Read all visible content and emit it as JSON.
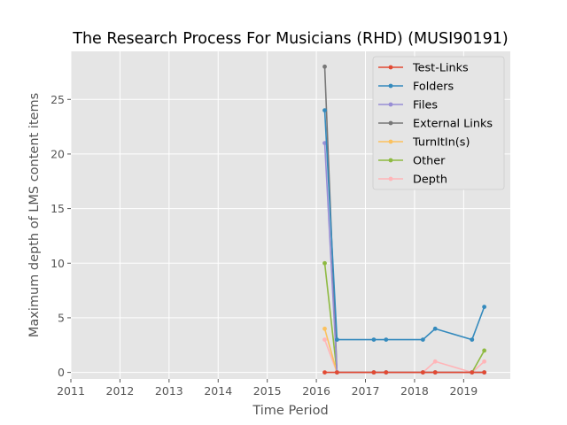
{
  "chart_data": {
    "type": "line",
    "title": "The Research Process For Musicians (RHD) (MUSI90191)",
    "xlabel": "Time Period",
    "ylabel": "Maximum depth of LMS content items",
    "xlim": [
      2011.0,
      2019.95
    ],
    "ylim": [
      -0.6,
      29.4
    ],
    "xticks": [
      2011,
      2012,
      2013,
      2014,
      2015,
      2016,
      2017,
      2018,
      2019
    ],
    "yticks": [
      0,
      5,
      10,
      15,
      20,
      25
    ],
    "grid": true,
    "legend_position": "upper right",
    "x_dates": [
      "2016-03",
      "2016-06",
      "2017-03",
      "2017-06",
      "2018-03",
      "2018-06",
      "2019-03",
      "2019-06"
    ],
    "x": [
      2016.17,
      2016.42,
      2017.17,
      2017.42,
      2018.17,
      2018.42,
      2019.17,
      2019.42
    ],
    "series": [
      {
        "name": "Test-Links",
        "color": "#E24A33",
        "values": [
          0,
          0,
          0,
          0,
          0,
          0,
          0,
          0
        ]
      },
      {
        "name": "Folders",
        "color": "#348ABD",
        "values": [
          24,
          3,
          3,
          3,
          3,
          4,
          3,
          6
        ]
      },
      {
        "name": "Files",
        "color": "#988ED5",
        "values": [
          21,
          0,
          0,
          0,
          0,
          0,
          0,
          0
        ]
      },
      {
        "name": "External Links",
        "color": "#777777",
        "values": [
          28,
          0,
          0,
          0,
          0,
          0,
          0,
          0
        ]
      },
      {
        "name": "TurnItIn(s)",
        "color": "#FBC15E",
        "values": [
          4,
          0,
          0,
          0,
          0,
          0,
          0,
          0
        ]
      },
      {
        "name": "Other",
        "color": "#8EBA42",
        "values": [
          10,
          0,
          0,
          0,
          0,
          0,
          0,
          2
        ]
      },
      {
        "name": "Depth",
        "color": "#FFB5B8",
        "values": [
          3,
          0,
          0,
          0,
          0,
          1,
          0,
          1
        ]
      }
    ]
  }
}
